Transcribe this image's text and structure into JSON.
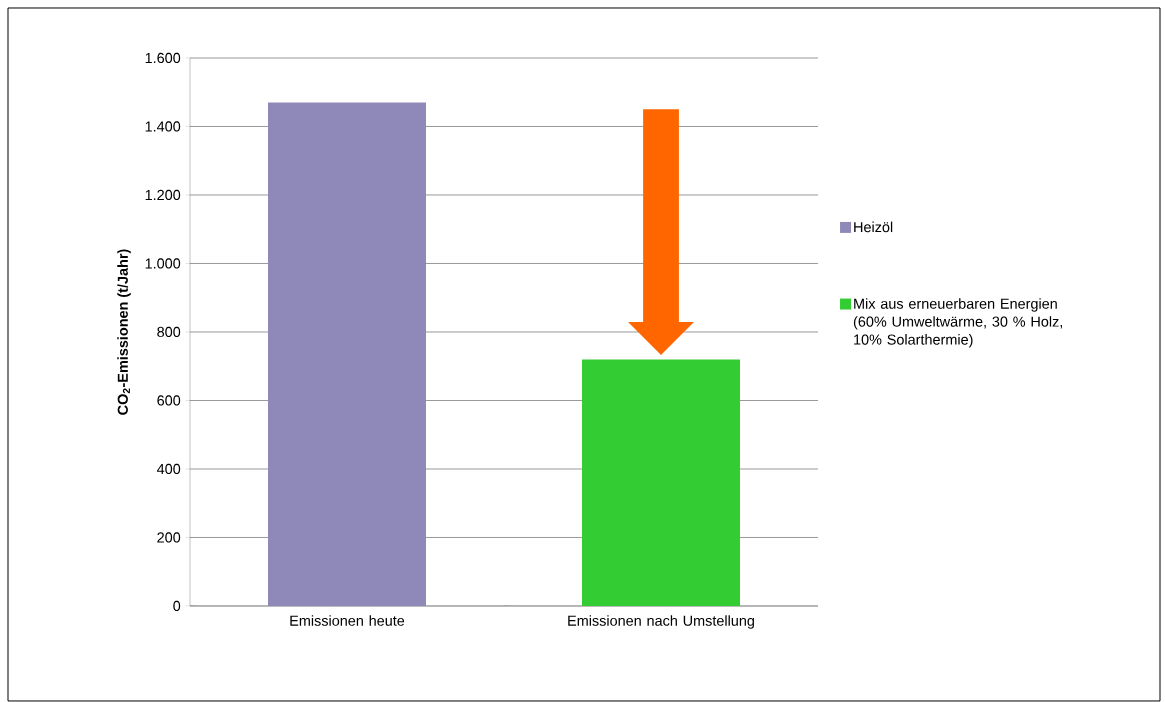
{
  "chart_data": {
    "type": "bar",
    "ylabel": "**CO$_{2}$-Emissionen (t/Jahr)**",
    "categories": [
      "Emissionen heute",
      "Emissionen nach Umstellung"
    ],
    "series": [
      {
        "name": "Heizöl",
        "color": "#8f89b9",
        "values": [
          1470,
          null
        ]
      },
      {
        "name": "Mix aus erneuerbaren Energien (60% Umweltwärme, 30 % Holz, 10% Solarthermie)",
        "color": "#33cc33",
        "values": [
          null,
          720
        ]
      }
    ],
    "ylim": [
      0,
      1600
    ],
    "yticks": [
      0,
      200,
      400,
      600,
      800,
      {
        "value": 1000,
        "label": "1.000"
      },
      {
        "value": 1200,
        "label": "1.200"
      },
      {
        "value": 1400,
        "label": "1.400"
      },
      {
        "value": 1600,
        "label": "1.600"
      }
    ],
    "grid": "y",
    "legend": "right"
  }
}
